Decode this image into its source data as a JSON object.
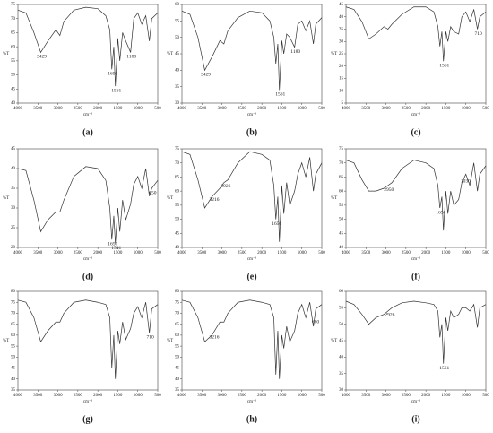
{
  "chart_data": [
    {
      "type": "line",
      "label": "(a)",
      "xlabel": "cm⁻¹",
      "ylabel": "%T",
      "color": "#333333",
      "x": [
        4000,
        3800,
        3600,
        3429,
        3250,
        3050,
        2950,
        2850,
        2600,
        2300,
        2000,
        1800,
        1700,
        1650,
        1600,
        1561,
        1500,
        1450,
        1380,
        1300,
        1180,
        1100,
        1000,
        900,
        800,
        710,
        650,
        500
      ],
      "values": [
        73,
        72,
        65,
        58,
        62,
        66,
        64,
        69,
        73,
        74,
        73.5,
        71,
        66,
        52,
        60,
        46,
        63,
        55,
        65,
        62,
        58,
        70,
        72,
        68,
        71,
        62,
        70,
        72
      ],
      "xlim": [
        4000,
        500
      ],
      "ylim": [
        40,
        75
      ],
      "xticks": [
        4000,
        3500,
        3000,
        2500,
        2000,
        1500,
        1000,
        500
      ],
      "yticks": [
        40,
        45,
        50,
        55,
        60,
        65,
        70,
        75
      ],
      "annotations": [
        3429,
        1650,
        1561,
        1180
      ]
    },
    {
      "type": "line",
      "label": "(b)",
      "xlabel": "cm⁻¹",
      "ylabel": "%T",
      "color": "#333333",
      "x": [
        4000,
        3800,
        3600,
        3429,
        3250,
        3050,
        2950,
        2850,
        2600,
        2300,
        2000,
        1800,
        1700,
        1650,
        1600,
        1561,
        1500,
        1450,
        1380,
        1300,
        1180,
        1100,
        1000,
        900,
        800,
        710,
        650,
        500
      ],
      "values": [
        58,
        57,
        50,
        40,
        44,
        49,
        48,
        52,
        56,
        58,
        57.5,
        55,
        50,
        42,
        48,
        34,
        49,
        45,
        51,
        50,
        47,
        54,
        55,
        52,
        55,
        48,
        54,
        56
      ],
      "xlim": [
        4000,
        500
      ],
      "ylim": [
        30,
        60
      ],
      "xticks": [
        4000,
        3500,
        3000,
        2500,
        2000,
        1500,
        1000,
        500
      ],
      "yticks": [
        30,
        35,
        40,
        45,
        50,
        55,
        60
      ],
      "annotations": [
        3429,
        1561,
        1180
      ]
    },
    {
      "type": "line",
      "label": "(c)",
      "xlabel": "cm⁻¹",
      "ylabel": "%T",
      "color": "#333333",
      "x": [
        4000,
        3800,
        3600,
        3429,
        3250,
        3050,
        2950,
        2850,
        2600,
        2300,
        2000,
        1800,
        1700,
        1650,
        1600,
        1561,
        1500,
        1450,
        1380,
        1300,
        1180,
        1100,
        1000,
        900,
        800,
        710,
        650,
        500
      ],
      "values": [
        44,
        43,
        38,
        31,
        33,
        36,
        35,
        37,
        41,
        44,
        44,
        42,
        36,
        28,
        34,
        22,
        34,
        30,
        36,
        34,
        33,
        40,
        42,
        38,
        43,
        35,
        40,
        42
      ],
      "xlim": [
        4000,
        500
      ],
      "ylim": [
        5,
        45
      ],
      "xticks": [
        4000,
        3500,
        3000,
        2500,
        2000,
        1500,
        1000,
        500
      ],
      "yticks": [
        5,
        10,
        15,
        20,
        25,
        30,
        35,
        40,
        45
      ],
      "annotations": [
        1561,
        710
      ]
    },
    {
      "type": "line",
      "label": "(d)",
      "xlabel": "cm⁻¹",
      "ylabel": "%T",
      "color": "#333333",
      "x": [
        4000,
        3800,
        3600,
        3429,
        3250,
        3050,
        2950,
        2850,
        2600,
        2300,
        2000,
        1800,
        1700,
        1650,
        1600,
        1561,
        1500,
        1450,
        1380,
        1300,
        1180,
        1100,
        1000,
        900,
        800,
        710,
        650,
        500
      ],
      "values": [
        40,
        39.5,
        32,
        24,
        27,
        29,
        29,
        32,
        38,
        40.5,
        40,
        37,
        30,
        22,
        28,
        21,
        30,
        24,
        32,
        27,
        31,
        36,
        38,
        35,
        40,
        33,
        35,
        37
      ],
      "xlim": [
        4000,
        500
      ],
      "ylim": [
        20,
        45
      ],
      "xticks": [
        4000,
        3500,
        3000,
        2500,
        2000,
        1500,
        1000,
        500
      ],
      "yticks": [
        20,
        25,
        30,
        35,
        40,
        45
      ],
      "annotations": [
        1650,
        1561,
        650
      ]
    },
    {
      "type": "line",
      "label": "(e)",
      "xlabel": "cm⁻¹",
      "ylabel": "%T",
      "color": "#333333",
      "x": [
        4000,
        3800,
        3600,
        3429,
        3250,
        3050,
        2950,
        2850,
        2600,
        2300,
        2000,
        1800,
        1700,
        1650,
        1600,
        1561,
        1500,
        1450,
        1380,
        1300,
        1180,
        1100,
        1000,
        900,
        800,
        710,
        650,
        500
      ],
      "values": [
        74,
        73,
        64,
        54,
        58,
        61,
        63,
        64,
        70,
        74,
        73,
        71,
        62,
        50,
        58,
        42,
        62,
        52,
        63,
        55,
        60,
        66,
        70,
        65,
        72,
        60,
        66,
        70
      ],
      "xlim": [
        4000,
        500
      ],
      "ylim": [
        40,
        75
      ],
      "xticks": [
        4000,
        3500,
        3000,
        2500,
        2000,
        1500,
        1000,
        500
      ],
      "yticks": [
        40,
        45,
        50,
        55,
        60,
        65,
        70,
        75
      ],
      "annotations": [
        3216,
        2926,
        1650
      ]
    },
    {
      "type": "line",
      "label": "(f)",
      "xlabel": "cm⁻¹",
      "ylabel": "%T",
      "color": "#333333",
      "x": [
        4000,
        3800,
        3600,
        3429,
        3250,
        3050,
        2950,
        2850,
        2600,
        2300,
        2000,
        1800,
        1700,
        1650,
        1600,
        1561,
        1500,
        1450,
        1380,
        1300,
        1180,
        1100,
        1000,
        900,
        800,
        710,
        650,
        500
      ],
      "values": [
        71,
        70,
        64,
        60,
        60,
        61,
        62,
        63,
        68,
        71,
        70,
        68,
        62,
        54,
        58,
        46,
        60,
        52,
        60,
        55,
        57,
        63,
        66,
        62,
        70,
        60,
        66,
        69
      ],
      "xlim": [
        4000,
        500
      ],
      "ylim": [
        40,
        75
      ],
      "xticks": [
        4000,
        3500,
        3000,
        2500,
        2000,
        1500,
        1000,
        500
      ],
      "yticks": [
        40,
        45,
        50,
        55,
        60,
        65,
        70,
        75
      ],
      "annotations": [
        2950,
        1650,
        1030
      ]
    },
    {
      "type": "line",
      "label": "(g)",
      "xlabel": "cm⁻¹",
      "ylabel": "%T",
      "color": "#333333",
      "x": [
        4000,
        3800,
        3600,
        3429,
        3250,
        3050,
        2950,
        2850,
        2600,
        2300,
        2000,
        1800,
        1700,
        1650,
        1600,
        1561,
        1500,
        1450,
        1380,
        1300,
        1180,
        1100,
        1000,
        900,
        800,
        710,
        650,
        500
      ],
      "values": [
        76,
        75,
        68,
        57,
        62,
        66,
        66,
        70,
        75,
        76,
        75,
        74,
        68,
        45,
        60,
        40,
        62,
        56,
        66,
        58,
        63,
        70,
        73,
        68,
        75,
        61,
        72,
        74
      ],
      "xlim": [
        4000,
        500
      ],
      "ylim": [
        35,
        80
      ],
      "xticks": [
        4000,
        3500,
        3000,
        2500,
        2000,
        1500,
        1000,
        500
      ],
      "yticks": [
        35,
        40,
        45,
        50,
        55,
        60,
        65,
        70,
        75,
        80
      ],
      "annotations": [
        710
      ]
    },
    {
      "type": "line",
      "label": "(h)",
      "xlabel": "cm⁻¹",
      "ylabel": "%T",
      "color": "#333333",
      "x": [
        4000,
        3800,
        3600,
        3429,
        3250,
        3050,
        2950,
        2850,
        2600,
        2300,
        2000,
        1800,
        1700,
        1650,
        1600,
        1561,
        1500,
        1450,
        1380,
        1300,
        1180,
        1100,
        1000,
        900,
        800,
        710,
        650,
        500
      ],
      "values": [
        76,
        75,
        68,
        57,
        60,
        66,
        66,
        70,
        75,
        76,
        75,
        74,
        68,
        42,
        62,
        40,
        60,
        54,
        64,
        57,
        62,
        70,
        74,
        68,
        75,
        64,
        72,
        74
      ],
      "xlim": [
        4000,
        500
      ],
      "ylim": [
        35,
        80
      ],
      "xticks": [
        4000,
        3500,
        3000,
        2500,
        2000,
        1500,
        1000,
        500
      ],
      "yticks": [
        35,
        40,
        45,
        50,
        55,
        60,
        65,
        70,
        75,
        80
      ],
      "annotations": [
        3216,
        680
      ]
    },
    {
      "type": "line",
      "label": "(i)",
      "xlabel": "cm⁻¹",
      "ylabel": "%T",
      "color": "#333333",
      "x": [
        4000,
        3800,
        3600,
        3429,
        3250,
        3050,
        2950,
        2850,
        2600,
        2300,
        2000,
        1800,
        1700,
        1650,
        1600,
        1561,
        1500,
        1450,
        1380,
        1300,
        1180,
        1100,
        1000,
        900,
        800,
        710,
        650,
        500
      ],
      "values": [
        57,
        56,
        53,
        50,
        52,
        53,
        54,
        55,
        56.5,
        57,
        56.5,
        56,
        54,
        46,
        50,
        38,
        52,
        48,
        54,
        52,
        53,
        55,
        55,
        54,
        56,
        49,
        55,
        56
      ],
      "xlim": [
        4000,
        500
      ],
      "ylim": [
        30,
        60
      ],
      "xticks": [
        4000,
        3500,
        3000,
        2500,
        2000,
        1500,
        1000,
        500
      ],
      "yticks": [
        30,
        35,
        40,
        45,
        50,
        55,
        60
      ],
      "annotations": [
        2926,
        1561
      ]
    }
  ]
}
